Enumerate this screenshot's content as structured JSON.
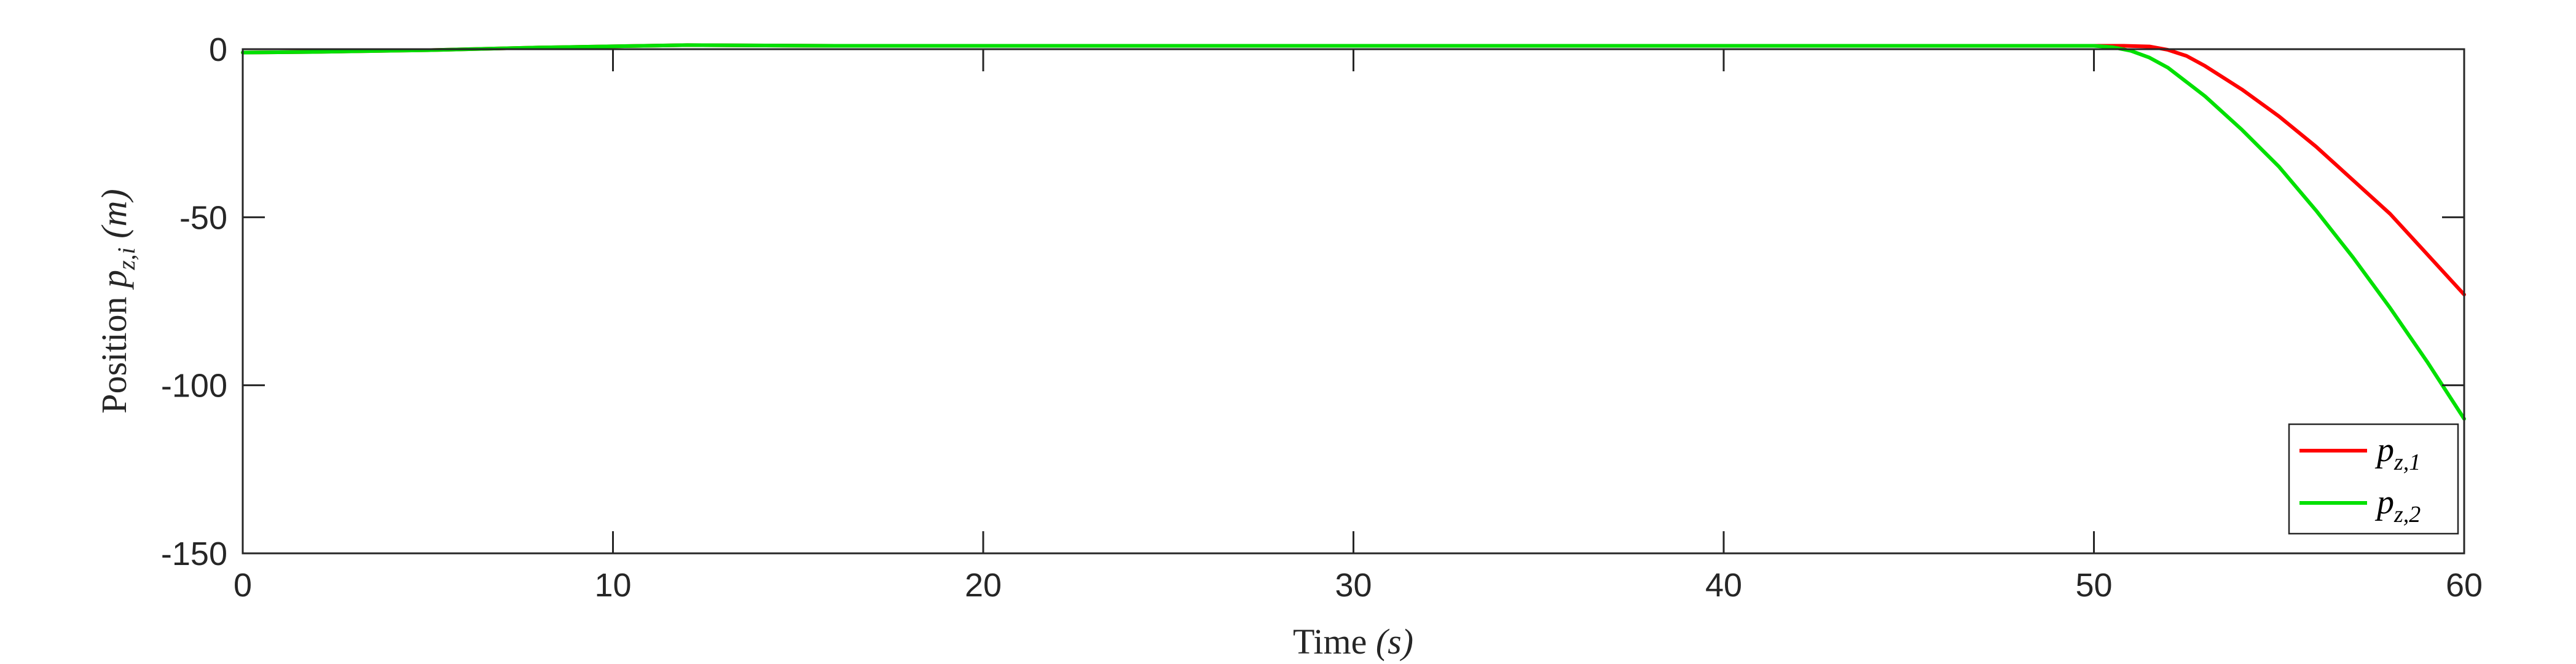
{
  "chart_data": {
    "type": "line",
    "xlabel_text": "Time ",
    "xlabel_unit": "(s)",
    "ylabel_text": "Position ",
    "ylabel_unit": "(m)",
    "ylabel_symbol": "p",
    "ylabel_symbol_sub": "z,i",
    "xlim": [
      0,
      60
    ],
    "ylim": [
      -150,
      0
    ],
    "xticks": [
      0,
      10,
      20,
      30,
      40,
      50,
      60
    ],
    "xtick_labels": [
      "0",
      "10",
      "20",
      "30",
      "40",
      "50",
      "60"
    ],
    "yticks": [
      0,
      -50,
      -100,
      -150
    ],
    "ytick_labels": [
      "0",
      "-50",
      "-100",
      "-150"
    ],
    "grid": false,
    "legend_position": "bottom-right",
    "series": [
      {
        "name": "p",
        "name_sub": "z,1",
        "color": "#ff0000",
        "x": [
          0,
          2,
          5,
          8,
          12,
          16,
          20,
          30,
          40,
          50,
          50.8,
          51.5,
          52,
          52.5,
          53,
          54,
          55,
          56,
          57,
          58,
          59,
          60
        ],
        "y": [
          -1,
          -0.8,
          -0.3,
          0.5,
          1.2,
          1,
          1,
          1,
          1,
          1,
          1,
          0.8,
          -0.2,
          -2,
          -5,
          -12,
          -20,
          -29,
          -39,
          -49,
          -61,
          -73
        ]
      },
      {
        "name": "p",
        "name_sub": "z,2",
        "color": "#00e000",
        "x": [
          0,
          2,
          5,
          8,
          12,
          16,
          20,
          30,
          40,
          50,
          50.5,
          51,
          51.5,
          52,
          53,
          54,
          55,
          56,
          57,
          58,
          59,
          60
        ],
        "y": [
          -1,
          -0.8,
          -0.3,
          0.5,
          1.2,
          1,
          1,
          1,
          1,
          1,
          0.6,
          -0.5,
          -2.5,
          -5.5,
          -14,
          -24,
          -35,
          -48,
          -62,
          -77,
          -93,
          -110
        ]
      }
    ]
  }
}
